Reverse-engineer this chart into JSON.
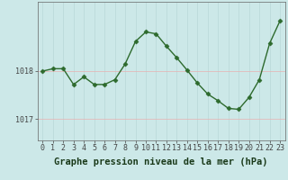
{
  "x": [
    0,
    1,
    2,
    3,
    4,
    5,
    6,
    7,
    8,
    9,
    10,
    11,
    12,
    13,
    14,
    15,
    16,
    17,
    18,
    19,
    20,
    21,
    22,
    23
  ],
  "y": [
    1018.0,
    1018.05,
    1018.05,
    1017.72,
    1017.88,
    1017.72,
    1017.72,
    1017.82,
    1018.15,
    1018.62,
    1018.82,
    1018.78,
    1018.52,
    1018.28,
    1018.02,
    1017.75,
    1017.52,
    1017.38,
    1017.22,
    1017.2,
    1017.45,
    1017.82,
    1018.58,
    1019.05
  ],
  "line_color": "#2d6a2d",
  "marker": "D",
  "markersize": 2.5,
  "background_color": "#cce8e8",
  "grid_color_v": "#b8d8d8",
  "grid_color_h": "#e8b0b0",
  "xlabel": "Graphe pression niveau de la mer (hPa)",
  "xlabel_fontsize": 7.5,
  "yticks": [
    1017,
    1018
  ],
  "ylim": [
    1016.55,
    1019.45
  ],
  "xlim": [
    -0.5,
    23.5
  ],
  "fig_bg": "#cce8e8",
  "tick_label_fontsize": 6.0,
  "linewidth": 1.0
}
